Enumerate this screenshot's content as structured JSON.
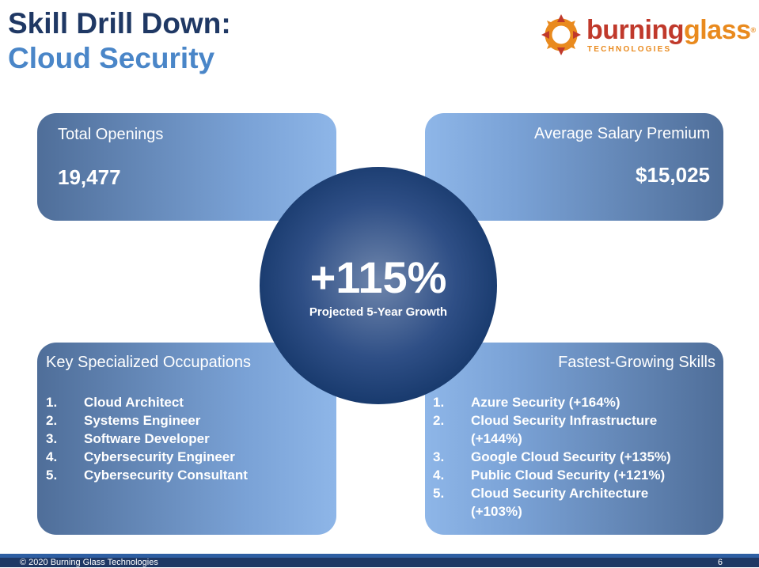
{
  "title": {
    "line1": "Skill Drill Down:",
    "line2": "Cloud Security"
  },
  "logo": {
    "word_part1": "burning",
    "word_part2": "glass",
    "registered": "®",
    "subtitle": "TECHNOLOGIES"
  },
  "cards": {
    "openings": {
      "label": "Total Openings",
      "value": "19,477"
    },
    "salary": {
      "label": "Average Salary Premium",
      "value": "$15,025"
    },
    "occupations": {
      "label": "Key Specialized Occupations",
      "items": [
        {
          "num": "1.",
          "text": "Cloud Architect"
        },
        {
          "num": "2.",
          "text": "Systems Engineer"
        },
        {
          "num": "3.",
          "text": "Software Developer"
        },
        {
          "num": "4.",
          "text": "Cybersecurity Engineer"
        },
        {
          "num": "5.",
          "text": "Cybersecurity Consultant"
        }
      ]
    },
    "skills": {
      "label": "Fastest-Growing Skills",
      "items": [
        {
          "num": "1.",
          "text": "Azure Security (+164%)"
        },
        {
          "num": "2.",
          "text": "Cloud Security Infrastructure (+144%)"
        },
        {
          "num": "3.",
          "text": "Google Cloud Security (+135%)"
        },
        {
          "num": "4.",
          "text": "Public Cloud Security (+121%)"
        },
        {
          "num": "5.",
          "text": "Cloud Security Architecture (+103%)"
        }
      ]
    }
  },
  "growth": {
    "value": "+115%",
    "caption": "Projected 5-Year Growth"
  },
  "footer": {
    "copyright": "© 2020 Burning Glass Technologies",
    "page": "6"
  },
  "colors": {
    "title_dark": "#1f3864",
    "title_light": "#4a86c8",
    "logo_red": "#c0392b",
    "logo_orange": "#e98a1e",
    "footer_bar": "#1f3864"
  },
  "icons": {
    "logo_mark": "starburst-logo-icon"
  }
}
